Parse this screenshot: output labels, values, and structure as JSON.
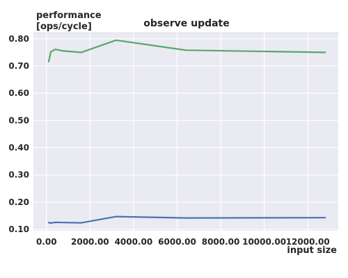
{
  "chart_data": {
    "type": "line",
    "title": "observe update",
    "ylabel_line1": "performance",
    "ylabel_line2": "[ops/cycle]",
    "xlabel": "input size",
    "xlim": [
      -600,
      13400
    ],
    "ylim": [
      0.095,
      0.825
    ],
    "x_ticks": [
      {
        "value": 0,
        "label": "0.00"
      },
      {
        "value": 2000,
        "label": "2000.00"
      },
      {
        "value": 4000,
        "label": "4000.00"
      },
      {
        "value": 6000,
        "label": "6000.00"
      },
      {
        "value": 8000,
        "label": "8000.00"
      },
      {
        "value": 10000,
        "label": "10000.00"
      },
      {
        "value": 12000,
        "label": "12000.00"
      }
    ],
    "y_ticks": [
      {
        "value": 0.1,
        "label": "0.10"
      },
      {
        "value": 0.2,
        "label": "0.20"
      },
      {
        "value": 0.3,
        "label": "0.30"
      },
      {
        "value": 0.4,
        "label": "0.40"
      },
      {
        "value": 0.5,
        "label": "0.50"
      },
      {
        "value": 0.6,
        "label": "0.60"
      },
      {
        "value": 0.7,
        "label": "0.70"
      },
      {
        "value": 0.8,
        "label": "0.80"
      }
    ],
    "grid": true,
    "background": "#eaeaf2",
    "series": [
      {
        "color": "#55a868",
        "x": [
          100,
          200,
          400,
          800,
          1600,
          3200,
          6400,
          12800
        ],
        "y": [
          0.716,
          0.752,
          0.761,
          0.755,
          0.75,
          0.795,
          0.758,
          0.75
        ]
      },
      {
        "color": "#4c72b0",
        "x": [
          100,
          200,
          400,
          800,
          1600,
          3200,
          6400,
          12800
        ],
        "y": [
          0.125,
          0.123,
          0.126,
          0.125,
          0.124,
          0.147,
          0.142,
          0.143
        ]
      }
    ]
  }
}
